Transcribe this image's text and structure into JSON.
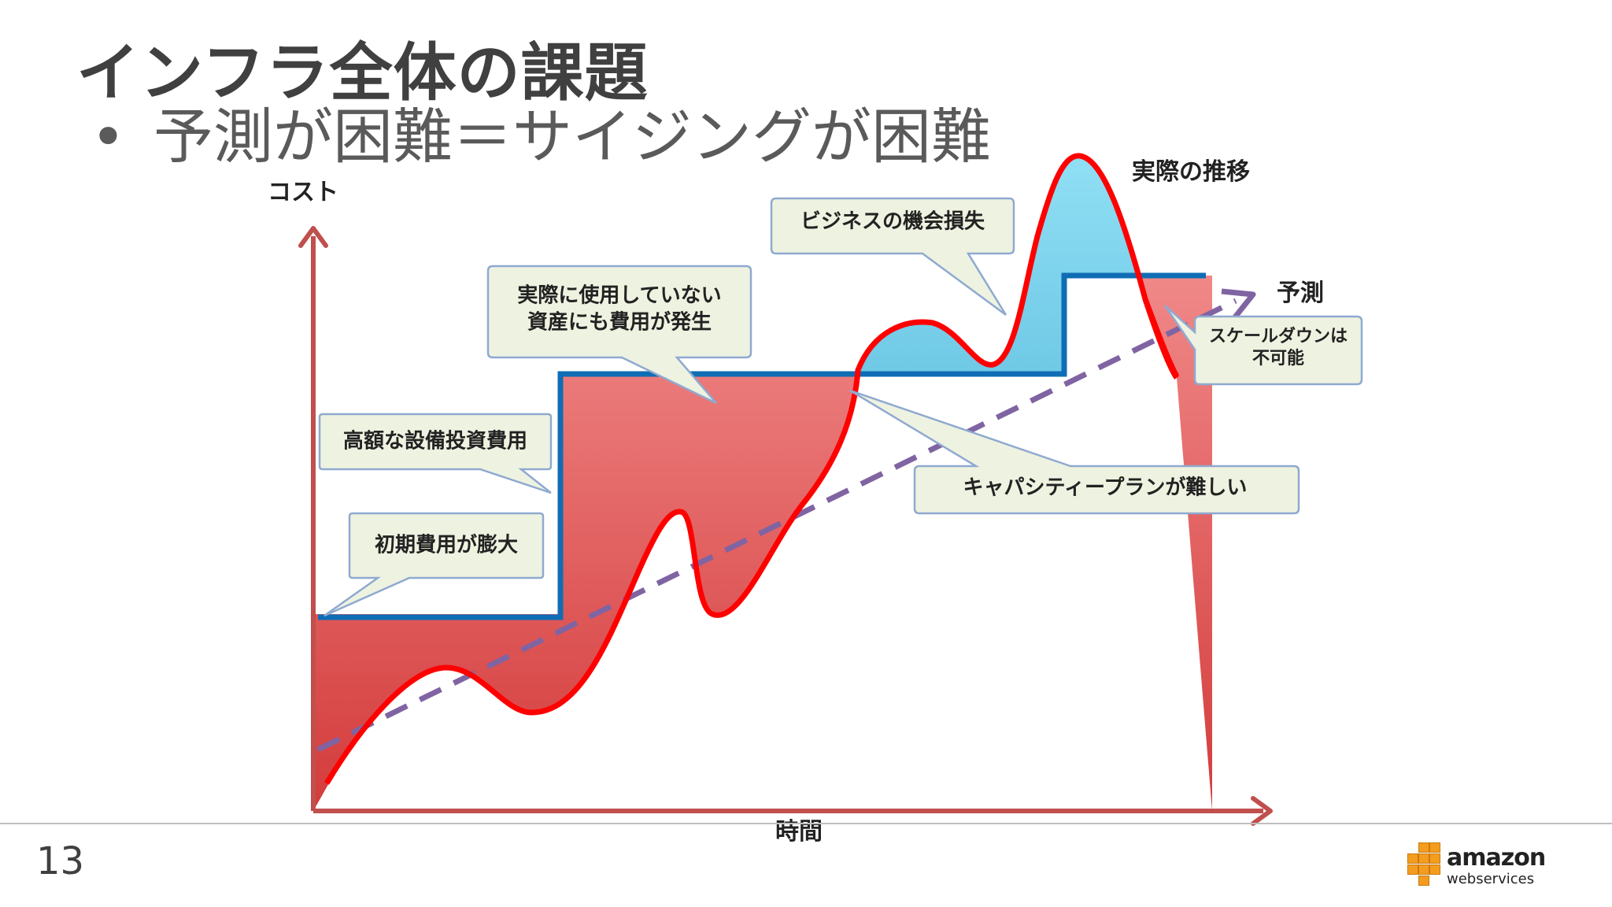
{
  "slide": {
    "title": "インフラ全体の課題",
    "bullet": "予測が困難＝サイジングが困難",
    "page_number": "13"
  },
  "diagram": {
    "y_axis_label": "コスト",
    "x_axis_label": "時間",
    "actual_label": "実際の推移",
    "forecast_label": "予測",
    "callouts": {
      "initial_cost": "初期費用が膨大",
      "capex": "高額な設備投資費用",
      "unused_line1": "実際に使用していない",
      "unused_line2": "資産にも費用が発生",
      "opportunity_loss": "ビジネスの機会損失",
      "scale_down_line1": "スケールダウンは",
      "scale_down_line2": "不可能",
      "capacity_planning": "キャパシティープランが難しい"
    },
    "colors": {
      "axis": "#c0504d",
      "capacity_line": "#0f6db5",
      "actual_line": "#ff0000",
      "forecast_line": "#8064a2",
      "over_capacity_fill": "#f08080",
      "under_capacity_fill": "#4fb3d9",
      "callout_fill": "#eef2e0",
      "callout_border": "#8faad0"
    }
  },
  "logo": {
    "brand": "amazon",
    "sub": "webservices"
  }
}
